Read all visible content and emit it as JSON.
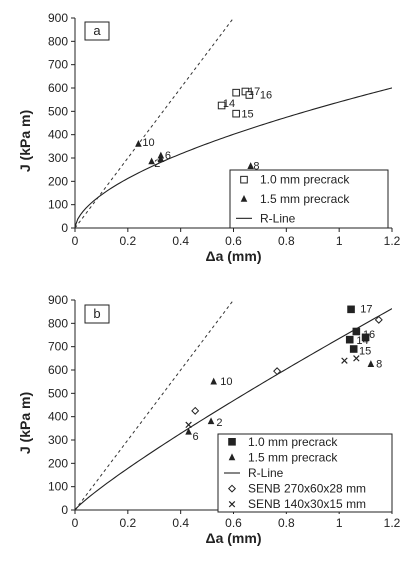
{
  "chart_data": [
    {
      "type": "scatter",
      "panel_label": "a",
      "xlabel": "Δa (mm)",
      "ylabel": "J (kPa m)",
      "xlim": [
        0,
        1.2
      ],
      "ylim": [
        0,
        900
      ],
      "xticks": [
        "0",
        "0.2",
        "0.4",
        "0.6",
        "0.8",
        "1",
        "1.2"
      ],
      "yticks": [
        "0",
        "100",
        "200",
        "300",
        "400",
        "500",
        "600",
        "700",
        "800",
        "900"
      ],
      "grid": false,
      "legend_position": "bottom-right",
      "legend": [
        "1.0 mm precrack",
        "1.5 mm precrack",
        "R-Line"
      ],
      "series": [
        {
          "name": "1.0 mm precrack",
          "marker": "open-square",
          "points": [
            [
              0.555,
              525
            ],
            [
              0.61,
              580
            ],
            [
              0.61,
              490
            ],
            [
              0.645,
              585
            ],
            [
              0.66,
              570
            ]
          ]
        },
        {
          "name": "1.5 mm precrack",
          "marker": "filled-triangle",
          "points": [
            [
              0.24,
              360
            ],
            [
              0.29,
              285
            ],
            [
              0.325,
              310
            ],
            [
              0.325,
              295
            ],
            [
              0.665,
              265
            ]
          ]
        }
      ],
      "point_labels": [
        {
          "text": "14",
          "x": 0.56,
          "y": 535
        },
        {
          "text": "17",
          "x": 0.655,
          "y": 588
        },
        {
          "text": "16",
          "x": 0.7,
          "y": 573
        },
        {
          "text": "15",
          "x": 0.63,
          "y": 490
        },
        {
          "text": "10",
          "x": 0.255,
          "y": 368
        },
        {
          "text": "6",
          "x": 0.34,
          "y": 313
        },
        {
          "text": "2",
          "x": 0.3,
          "y": 278
        },
        {
          "text": "8",
          "x": 0.675,
          "y": 268
        }
      ],
      "r_line": {
        "name": "R-Line",
        "A": 540,
        "B": 0.58
      },
      "dashed_line": {
        "slope": 1500
      }
    },
    {
      "type": "scatter",
      "panel_label": "b",
      "xlabel": "Δa (mm)",
      "ylabel": "J (kPa m)",
      "xlim": [
        0,
        1.2
      ],
      "ylim": [
        0,
        900
      ],
      "xticks": [
        "0",
        "0.2",
        "0.4",
        "0.6",
        "0.8",
        "1",
        "1.2"
      ],
      "yticks": [
        "0",
        "100",
        "200",
        "300",
        "400",
        "500",
        "600",
        "700",
        "800",
        "900"
      ],
      "grid": false,
      "legend_position": "bottom-right",
      "legend": [
        "1.0 mm precrack",
        "1.5 mm precrack",
        "R-Line",
        "SENB 270x60x28 mm",
        "SENB 140x30x15 mm"
      ],
      "series": [
        {
          "name": "1.0 mm precrack",
          "marker": "filled-square",
          "points": [
            [
              1.045,
              860
            ],
            [
              1.065,
              765
            ],
            [
              1.04,
              730
            ],
            [
              1.055,
              690
            ],
            [
              1.1,
              740
            ]
          ]
        },
        {
          "name": "1.5 mm precrack",
          "marker": "filled-triangle",
          "points": [
            [
              0.43,
              335
            ],
            [
              0.515,
              380
            ],
            [
              0.525,
              550
            ],
            [
              1.12,
              625
            ]
          ]
        },
        {
          "name": "SENB 270x60x28 mm",
          "marker": "open-diamond",
          "points": [
            [
              0.455,
              425
            ],
            [
              0.765,
              595
            ],
            [
              1.15,
              815
            ]
          ]
        },
        {
          "name": "SENB 140x30x15 mm",
          "marker": "cross",
          "points": [
            [
              0.43,
              365
            ],
            [
              1.02,
              640
            ],
            [
              1.065,
              650
            ]
          ]
        }
      ],
      "point_labels": [
        {
          "text": "17",
          "x": 1.08,
          "y": 863
        },
        {
          "text": "16",
          "x": 1.09,
          "y": 755
        },
        {
          "text": "14",
          "x": 1.065,
          "y": 728
        },
        {
          "text": "15",
          "x": 1.075,
          "y": 683
        },
        {
          "text": "10",
          "x": 0.55,
          "y": 552
        },
        {
          "text": "2",
          "x": 0.535,
          "y": 378
        },
        {
          "text": "6",
          "x": 0.445,
          "y": 318
        },
        {
          "text": "8",
          "x": 1.14,
          "y": 628
        }
      ],
      "r_line": {
        "name": "R-Line",
        "A": 735,
        "B": 0.88
      },
      "dashed_line": {
        "slope": 1500
      }
    }
  ]
}
